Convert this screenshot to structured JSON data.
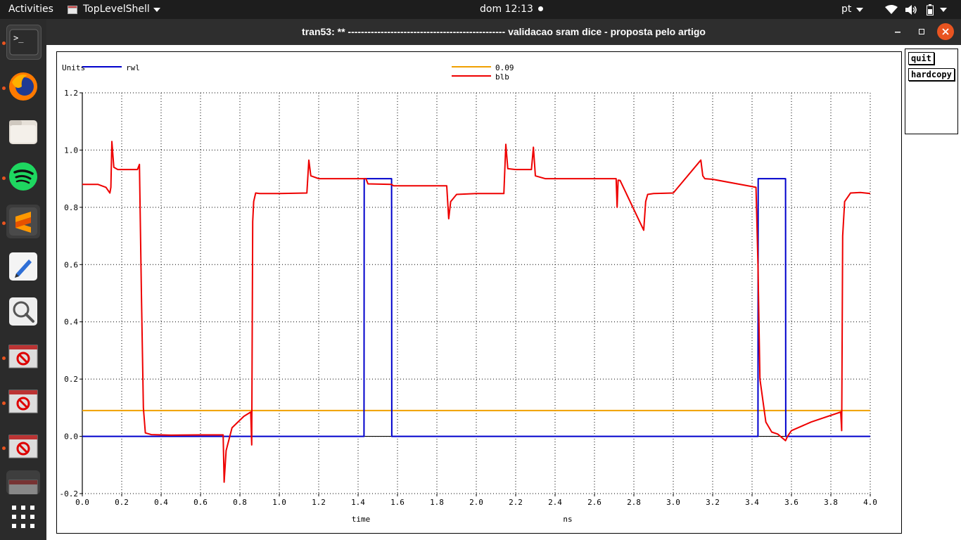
{
  "topbar": {
    "activities": "Activities",
    "app_name": "TopLevelShell",
    "clock": "dom 12:13",
    "language": "pt"
  },
  "window": {
    "title": "tran53: ** ------------------------------------------------ validacao sram dice - proposta pelo artigo"
  },
  "side_buttons": {
    "quit": "quit",
    "hardcopy": "hardcopy"
  },
  "dock": {
    "items": [
      "terminal-icon",
      "firefox-icon",
      "files-icon",
      "spotify-icon",
      "sublime-text-icon",
      "text-editor-icon",
      "image-viewer-icon",
      "app-window-icon",
      "app-window-icon",
      "app-window-icon",
      "app-window-icon"
    ]
  },
  "chart_data": {
    "type": "line",
    "units_label": "Units",
    "xlabel": "time",
    "xunit": "ns",
    "xlim": [
      0.0,
      4.0
    ],
    "ylim": [
      -0.2,
      1.2
    ],
    "xticks": [
      "0.0",
      "0.2",
      "0.4",
      "0.6",
      "0.8",
      "1.0",
      "1.2",
      "1.4",
      "1.6",
      "1.8",
      "2.0",
      "2.2",
      "2.4",
      "2.6",
      "2.8",
      "3.0",
      "3.2",
      "3.4",
      "3.6",
      "3.8",
      "4.0"
    ],
    "yticks": [
      "-0.2",
      "0.0",
      "0.2",
      "0.4",
      "0.6",
      "0.8",
      "1.0",
      "1.2"
    ],
    "grid": true,
    "legend_placement": "top",
    "colors": {
      "rwl": "#0000cc",
      "threshold": "#f0a000",
      "blb": "#ee0000"
    },
    "series": [
      {
        "name": "rwl",
        "x": [
          0.0,
          1.43,
          1.431,
          1.57,
          1.571,
          3.43,
          3.431,
          3.57,
          3.571,
          4.0
        ],
        "y": [
          0.0,
          0.0,
          0.9,
          0.9,
          0.0,
          0.0,
          0.9,
          0.9,
          0.0,
          0.0
        ]
      },
      {
        "name": "0.09",
        "x": [
          0.0,
          4.0
        ],
        "y": [
          0.09,
          0.09
        ]
      },
      {
        "name": "blb",
        "x": [
          0.0,
          0.08,
          0.12,
          0.14,
          0.145,
          0.15,
          0.16,
          0.18,
          0.22,
          0.28,
          0.29,
          0.3,
          0.31,
          0.32,
          0.35,
          0.45,
          0.6,
          0.715,
          0.72,
          0.73,
          0.76,
          0.82,
          0.855,
          0.86,
          0.865,
          0.87,
          0.88,
          0.9,
          1.0,
          1.14,
          1.15,
          1.16,
          1.2,
          1.44,
          1.45,
          1.57,
          1.58,
          1.85,
          1.86,
          1.87,
          1.9,
          2.0,
          2.14,
          2.15,
          2.16,
          2.2,
          2.28,
          2.29,
          2.3,
          2.35,
          2.71,
          2.715,
          2.72,
          2.73,
          2.85,
          2.86,
          2.87,
          2.9,
          3.0,
          3.14,
          3.15,
          3.16,
          3.2,
          3.42,
          3.43,
          3.44,
          3.47,
          3.5,
          3.53,
          3.57,
          3.58,
          3.6,
          3.7,
          3.85,
          3.855,
          3.86,
          3.87,
          3.9,
          3.95,
          4.0
        ],
        "y": [
          0.88,
          0.88,
          0.87,
          0.85,
          0.87,
          1.03,
          0.94,
          0.932,
          0.932,
          0.932,
          0.95,
          0.5,
          0.1,
          0.012,
          0.006,
          0.004,
          0.005,
          0.005,
          -0.16,
          -0.05,
          0.03,
          0.07,
          0.085,
          -0.03,
          0.75,
          0.82,
          0.85,
          0.848,
          0.848,
          0.85,
          0.965,
          0.91,
          0.9,
          0.9,
          0.882,
          0.88,
          0.875,
          0.875,
          0.76,
          0.82,
          0.845,
          0.848,
          0.848,
          1.02,
          0.935,
          0.932,
          0.932,
          1.01,
          0.91,
          0.9,
          0.9,
          0.8,
          0.895,
          0.894,
          0.72,
          0.82,
          0.845,
          0.848,
          0.85,
          0.965,
          0.91,
          0.9,
          0.898,
          0.87,
          0.6,
          0.2,
          0.05,
          0.015,
          0.008,
          -0.015,
          0.0,
          0.02,
          0.05,
          0.085,
          0.02,
          0.7,
          0.82,
          0.85,
          0.852,
          0.848
        ]
      }
    ]
  }
}
